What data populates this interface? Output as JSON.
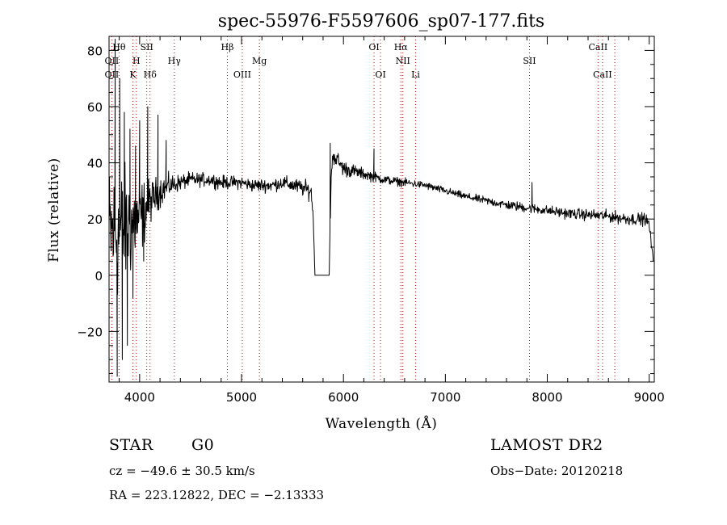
{
  "chart_data": {
    "type": "line",
    "title": "spec-55976-F5597606_sp07-177.fits",
    "xlabel": "Wavelength (Å)",
    "ylabel": "Flux (relative)",
    "xlim": [
      3700,
      9050
    ],
    "ylim": [
      -38,
      85
    ],
    "xticks": [
      4000,
      5000,
      6000,
      7000,
      8000,
      9000
    ],
    "yticks": [
      -20,
      0,
      20,
      40,
      60,
      80
    ],
    "x_minor_step": 200,
    "y_minor_step": 5,
    "spectrum_anchors": {
      "wavelength": [
        3700,
        3800,
        3900,
        4000,
        4100,
        4200,
        4300,
        4400,
        4500,
        4600,
        4700,
        4800,
        4900,
        5000,
        5100,
        5200,
        5300,
        5400,
        5500,
        5600,
        5680,
        5700,
        5720,
        5860,
        5880,
        5900,
        6000,
        6200,
        6400,
        6600,
        6800,
        7000,
        7200,
        7400,
        7600,
        7800,
        8000,
        8200,
        8400,
        8600,
        8800,
        8960,
        9000,
        9040
      ],
      "flux": [
        15,
        15,
        18,
        20,
        26,
        30,
        32,
        33,
        34,
        34,
        34,
        33,
        33,
        33,
        32,
        32,
        32,
        33,
        32,
        31,
        30,
        24,
        0,
        0,
        36,
        43,
        38,
        36,
        34,
        33,
        32,
        30,
        28,
        26.5,
        25,
        24,
        23,
        22,
        21.5,
        21,
        20,
        20,
        18,
        5
      ],
      "noise": [
        22,
        22,
        18,
        13,
        7,
        5,
        3.5,
        2.6,
        2.4,
        2.2,
        2.2,
        2.2,
        2.1,
        2.1,
        2.1,
        2.1,
        2.2,
        2.2,
        2.4,
        2.6,
        3,
        3,
        0,
        0,
        3,
        3,
        2.6,
        1.8,
        1.5,
        1.3,
        1.2,
        1.2,
        1.2,
        1.3,
        1.5,
        1.6,
        1.6,
        1.7,
        1.8,
        1.9,
        2,
        2,
        2,
        1
      ]
    },
    "spectrum_spikes": [
      {
        "x": 3760,
        "y": 84
      },
      {
        "x": 3780,
        "y": -36
      },
      {
        "x": 3805,
        "y": 70
      },
      {
        "x": 3830,
        "y": -30
      },
      {
        "x": 3850,
        "y": 58
      },
      {
        "x": 3880,
        "y": -25
      },
      {
        "x": 3905,
        "y": 52
      },
      {
        "x": 3935,
        "y": -8
      },
      {
        "x": 3960,
        "y": 46
      },
      {
        "x": 4000,
        "y": 55
      },
      {
        "x": 4040,
        "y": 5
      },
      {
        "x": 4080,
        "y": 60
      },
      {
        "x": 4180,
        "y": 57
      },
      {
        "x": 4260,
        "y": 48
      },
      {
        "x": 5870,
        "y": 47
      },
      {
        "x": 6300,
        "y": 45
      },
      {
        "x": 7850,
        "y": 33
      }
    ],
    "line_markers": [
      {
        "name": "Hθ",
        "x": 3798,
        "row": 1
      },
      {
        "name": "OII",
        "x": 3727,
        "row": 2
      },
      {
        "name": "OII",
        "x": 3727,
        "row": 3
      },
      {
        "name": "SII",
        "x": 4070,
        "row": 1
      },
      {
        "name": "H",
        "x": 3968,
        "row": 2
      },
      {
        "name": "K",
        "x": 3934,
        "row": 3
      },
      {
        "name": "Hδ",
        "x": 4102,
        "row": 3
      },
      {
        "name": "Hγ",
        "x": 4340,
        "row": 2
      },
      {
        "name": "Hβ",
        "x": 4861,
        "row": 1
      },
      {
        "name": "Mg",
        "x": 5175,
        "row": 2
      },
      {
        "name": "OIII",
        "x": 5007,
        "row": 3
      },
      {
        "name": "OI",
        "x": 6300,
        "row": 1
      },
      {
        "name": "Hα",
        "x": 6563,
        "row": 1
      },
      {
        "name": "NII",
        "x": 6583,
        "row": 2
      },
      {
        "name": "OI",
        "x": 6364,
        "row": 3
      },
      {
        "name": "Li",
        "x": 6708,
        "row": 3
      },
      {
        "name": "SII",
        "x": 7825,
        "row": 2
      },
      {
        "name": "CaII",
        "x": 8498,
        "row": 1
      },
      {
        "name": "CaII",
        "x": 8542,
        "row": 3
      }
    ],
    "dotted_lines": [
      3727,
      3798,
      3934,
      3968,
      4070,
      4102,
      4340,
      4861,
      5007,
      5175,
      6300,
      6364,
      6563,
      6583,
      6708,
      7825,
      8498,
      8542,
      8662
    ]
  },
  "info": {
    "class_label": "STAR",
    "subclass_label": "G0",
    "redshift_text": "cz = −49.6 ± 30.5 km/s",
    "coords_text": "RA = 223.12822, DEC =  −2.13333",
    "survey_label": "LAMOST DR2",
    "obs_date_text": "Obs−Date: 20120218"
  },
  "colors": {
    "spectrum": "#000000",
    "axes": "#000000",
    "marker_lines": "#cc0000",
    "background": "#ffffff"
  }
}
